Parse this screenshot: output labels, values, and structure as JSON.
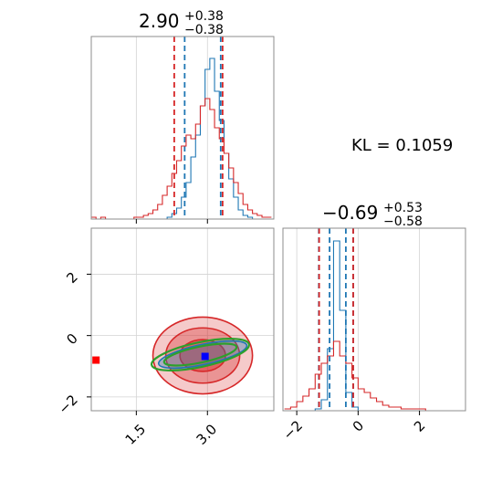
{
  "colors": {
    "series_a": "#1f77b4",
    "series_b": "#d62728",
    "contour_green": "#2ca02c",
    "truth_marker": "#ff0000",
    "mean_marker": "#0000ff",
    "grid": "#d3d3d3"
  },
  "annotation": {
    "kl_text": "KL = 0.1059"
  },
  "chart_data": [
    {
      "id": "hist_p1",
      "type": "line",
      "title": {
        "median": "2.90",
        "plus": "+0.38",
        "minus": "−0.38"
      },
      "xlim": [
        0.55,
        4.4
      ],
      "ylim": [
        0,
        1
      ],
      "grid": true,
      "bin_centers": [
        0.6,
        0.7,
        0.8,
        0.9,
        1.0,
        1.1,
        1.2,
        1.3,
        1.4,
        1.5,
        1.6,
        1.7,
        1.8,
        1.9,
        2.0,
        2.1,
        2.2,
        2.3,
        2.4,
        2.5,
        2.6,
        2.7,
        2.8,
        2.9,
        3.0,
        3.1,
        3.2,
        3.3,
        3.4,
        3.5,
        3.6,
        3.7,
        3.8,
        3.9,
        4.0,
        4.1,
        4.2,
        4.3
      ],
      "series": [
        {
          "color_key": "series_a",
          "values": [
            0,
            0,
            0,
            0,
            0,
            0,
            0,
            0,
            0,
            0,
            0,
            0,
            0,
            0,
            0,
            0,
            0.01,
            0.03,
            0.06,
            0.12,
            0.2,
            0.34,
            0.46,
            0.62,
            0.82,
            0.88,
            0.7,
            0.54,
            0.36,
            0.22,
            0.12,
            0.05,
            0.02,
            0.01,
            0,
            0,
            0,
            0
          ],
          "quantiles": [
            2.52,
            3.28
          ]
        },
        {
          "color_key": "series_b",
          "values": [
            0.01,
            0,
            0.01,
            0,
            0,
            0,
            0,
            0,
            0,
            0.01,
            0.01,
            0.02,
            0.03,
            0.05,
            0.08,
            0.13,
            0.18,
            0.25,
            0.32,
            0.4,
            0.46,
            0.44,
            0.52,
            0.62,
            0.66,
            0.6,
            0.5,
            0.44,
            0.36,
            0.28,
            0.2,
            0.14,
            0.08,
            0.05,
            0.03,
            0.02,
            0.01,
            0.01
          ],
          "quantiles": [
            2.3,
            3.32
          ]
        }
      ],
      "xticks": [
        1.5,
        3.0
      ]
    },
    {
      "id": "scatter_p1_p2",
      "type": "scatter",
      "xlim": [
        0.55,
        4.4
      ],
      "ylim": [
        -2.45,
        3.5
      ],
      "grid": true,
      "xticks": [
        1.5,
        3.0
      ],
      "xtick_labels": [
        "1.5",
        "3.0"
      ],
      "yticks": [
        -2,
        0,
        2
      ],
      "ytick_labels": [
        "−2",
        "0",
        "2"
      ],
      "contour_b": {
        "center": [
          2.9,
          -0.65
        ],
        "levels": [
          {
            "rx": 1.05,
            "ry": 1.25,
            "alpha": 0.45
          },
          {
            "rx": 0.78,
            "ry": 0.9,
            "alpha": 0.6
          },
          {
            "rx": 0.48,
            "ry": 0.52,
            "alpha": 0.85
          }
        ]
      },
      "contour_a": {
        "center": [
          2.9,
          -0.62
        ],
        "rotation_deg": 12,
        "rx": 0.95,
        "ry": 0.33
      },
      "contour_green": {
        "center": [
          2.85,
          -0.62
        ],
        "rotation_deg": 12,
        "levels": [
          {
            "rx": 1.05,
            "ry": 0.4
          },
          {
            "rx": 0.78,
            "ry": 0.26
          }
        ]
      },
      "mean_marker": [
        2.95,
        -0.68
      ],
      "truth_marker": [
        0.65,
        -0.8
      ]
    },
    {
      "id": "hist_p2",
      "type": "line",
      "title": {
        "median": "−0.69",
        "plus": "+0.53",
        "minus": "−0.58"
      },
      "xlim": [
        -2.45,
        3.5
      ],
      "ylim": [
        0,
        1
      ],
      "grid": true,
      "xticks": [
        -2,
        0,
        2
      ],
      "xtick_labels": [
        "−2",
        "0",
        "2"
      ],
      "bin_centers": [
        -2.3,
        -2.1,
        -1.9,
        -1.7,
        -1.5,
        -1.3,
        -1.1,
        -0.9,
        -0.7,
        -0.5,
        -0.3,
        -0.1,
        0.1,
        0.3,
        0.5,
        0.7,
        0.9,
        1.1,
        1.3,
        1.5,
        1.7,
        1.9,
        2.1,
        2.3,
        2.5,
        2.7,
        2.9,
        3.1,
        3.3
      ],
      "series": [
        {
          "color_key": "series_a",
          "values": [
            0,
            0,
            0,
            0,
            0,
            0.01,
            0.06,
            0.34,
            0.93,
            0.55,
            0.1,
            0.02,
            0,
            0,
            0,
            0,
            0,
            0,
            0,
            0,
            0,
            0,
            0,
            0,
            0,
            0,
            0,
            0,
            0
          ],
          "quantiles": [
            -1.28,
            -0.16
          ]
        },
        {
          "color_key": "series_b",
          "values": [
            0.01,
            0.02,
            0.05,
            0.08,
            0.12,
            0.2,
            0.26,
            0.3,
            0.38,
            0.3,
            0.26,
            0.18,
            0.12,
            0.1,
            0.07,
            0.05,
            0.03,
            0.02,
            0.02,
            0.01,
            0.01,
            0.01,
            0.01,
            0,
            0,
            0,
            0,
            0,
            0
          ],
          "quantiles": [
            -1.27,
            -0.16
          ]
        }
      ],
      "quantiles_a_inner": [
        -0.93,
        -0.4
      ]
    }
  ]
}
